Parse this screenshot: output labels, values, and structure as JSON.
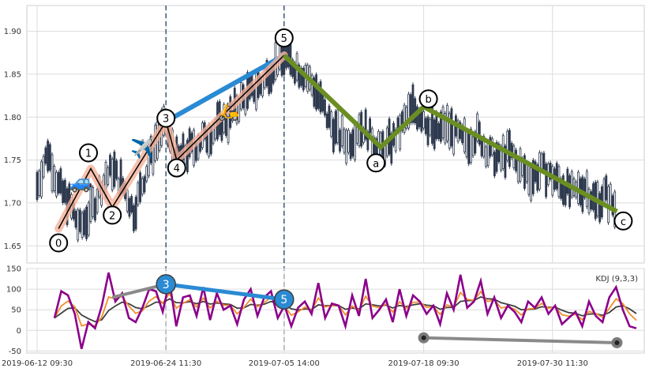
{
  "chart_data": [
    {
      "type": "candlestick",
      "panel": "price",
      "ylim": [
        1.63,
        1.93
      ],
      "y_ticks": [
        "1.65",
        "1.70",
        "1.75",
        "1.80",
        "1.85",
        "1.90"
      ],
      "x_range_days": "2019-06-12 09:30 to 2019-08-07",
      "x_tick_labels": [
        "2019-06-12 09:30",
        "2019-06-24 11:30",
        "2019-07-05 14:00",
        "2019-07-18 09:30",
        "2019-07-30 11:30"
      ],
      "x_tick_dates": [
        "2019-06-12",
        "2019-06-24",
        "2019-07-05",
        "2019-07-18",
        "2019-07-30"
      ],
      "vlines": [
        "2019-06-24",
        "2019-07-05"
      ],
      "candle_path": [
        [
          "2019-06-12",
          1.72
        ],
        [
          "2019-06-13",
          1.76
        ],
        [
          "2019-06-14",
          1.72
        ],
        [
          "2019-06-15",
          1.7
        ],
        [
          "2019-06-16",
          1.67
        ],
        [
          "2019-06-17",
          1.69
        ],
        [
          "2019-06-18",
          1.72
        ],
        [
          "2019-06-19",
          1.74
        ],
        [
          "2019-06-20",
          1.72
        ],
        [
          "2019-06-21",
          1.69
        ],
        [
          "2019-06-22",
          1.73
        ],
        [
          "2019-06-23",
          1.77
        ],
        [
          "2019-06-24",
          1.79
        ],
        [
          "2019-06-25",
          1.75
        ],
        [
          "2019-06-26",
          1.76
        ],
        [
          "2019-06-27",
          1.77
        ],
        [
          "2019-06-28",
          1.78
        ],
        [
          "2019-06-29",
          1.79
        ],
        [
          "2019-06-30",
          1.8
        ],
        [
          "2019-07-01",
          1.82
        ],
        [
          "2019-07-02",
          1.83
        ],
        [
          "2019-07-03",
          1.84
        ],
        [
          "2019-07-04",
          1.86
        ],
        [
          "2019-07-05",
          1.87
        ],
        [
          "2019-07-06",
          1.86
        ],
        [
          "2019-07-07",
          1.85
        ],
        [
          "2019-07-08",
          1.83
        ],
        [
          "2019-07-09",
          1.8
        ],
        [
          "2019-07-10",
          1.78
        ],
        [
          "2019-07-11",
          1.77
        ],
        [
          "2019-07-12",
          1.79
        ],
        [
          "2019-07-13",
          1.78
        ],
        [
          "2019-07-14",
          1.76
        ],
        [
          "2019-07-15",
          1.77
        ],
        [
          "2019-07-16",
          1.79
        ],
        [
          "2019-07-17",
          1.81
        ],
        [
          "2019-07-18",
          1.8
        ],
        [
          "2019-07-19",
          1.78
        ],
        [
          "2019-07-20",
          1.79
        ],
        [
          "2019-07-21",
          1.78
        ],
        [
          "2019-07-22",
          1.77
        ],
        [
          "2019-07-23",
          1.78
        ],
        [
          "2019-07-24",
          1.76
        ],
        [
          "2019-07-25",
          1.75
        ],
        [
          "2019-07-26",
          1.76
        ],
        [
          "2019-07-27",
          1.74
        ],
        [
          "2019-07-28",
          1.73
        ],
        [
          "2019-07-29",
          1.74
        ],
        [
          "2019-07-30",
          1.73
        ],
        [
          "2019-07-31",
          1.72
        ],
        [
          "2019-08-01",
          1.71
        ],
        [
          "2019-08-02",
          1.72
        ],
        [
          "2019-08-03",
          1.7
        ],
        [
          "2019-08-04",
          1.71
        ],
        [
          "2019-08-05",
          1.69
        ]
      ],
      "wave_main": {
        "labels": [
          "0",
          "1",
          "2",
          "3",
          "4",
          "5"
        ],
        "points": [
          [
            "2019-06-14",
            1.67
          ],
          [
            "2019-06-17",
            1.74
          ],
          [
            "2019-06-19",
            1.695
          ],
          [
            "2019-06-24",
            1.795
          ],
          [
            "2019-06-25",
            1.75
          ],
          [
            "2019-07-05",
            1.872
          ]
        ]
      },
      "wave_correction": {
        "labels": [
          "a",
          "b",
          "c"
        ],
        "points": [
          [
            "2019-07-05",
            1.872
          ],
          [
            "2019-07-14",
            1.765
          ],
          [
            "2019-07-18",
            1.812
          ],
          [
            "2019-08-05",
            1.69
          ]
        ]
      },
      "trend_line_3_5": [
        [
          "2019-06-24",
          1.795
        ],
        [
          "2019-07-05",
          1.872
        ]
      ],
      "colors": {
        "candle": "#2e3a4f",
        "wave_main": "#000000",
        "wave_glow": "#f4b29a",
        "correction": "#6b8e23",
        "trend": "#2a8ad4"
      },
      "emoji": {
        "car": "🚙",
        "plane": "✈️",
        "scooter": "🛵"
      }
    },
    {
      "type": "line",
      "panel": "kdj",
      "legend": "KDJ (9,3,3)",
      "ylim": [
        -55,
        150
      ],
      "y_ticks": [
        "-50",
        "0",
        "50",
        "100",
        "150"
      ],
      "series_colors": {
        "K": "#f28e2b",
        "D": "#3f3f3f",
        "J": "#8b008b"
      },
      "J_values": [
        30,
        95,
        85,
        40,
        -45,
        20,
        5,
        60,
        140,
        70,
        90,
        30,
        20,
        55,
        100,
        95,
        45,
        120,
        10,
        80,
        85,
        35,
        105,
        25,
        90,
        50,
        60,
        15,
        75,
        100,
        35,
        80,
        95,
        30,
        60,
        10,
        55,
        70,
        40,
        115,
        30,
        65,
        60,
        10,
        85,
        35,
        125,
        30,
        50,
        75,
        20,
        100,
        35,
        85,
        70,
        40,
        60,
        15,
        90,
        50,
        135,
        55,
        70,
        120,
        40,
        80,
        30,
        60,
        45,
        20,
        70,
        55,
        80,
        40,
        60,
        15,
        30,
        45,
        10,
        70,
        35,
        20,
        80,
        105,
        50,
        10,
        5
      ],
      "kdj_marks": {
        "labels": [
          "3",
          "5"
        ],
        "points": [
          [
            "2019-06-24",
            112
          ],
          [
            "2019-07-05",
            75
          ]
        ],
        "extra_gray": [
          [
            "2019-06-19",
            80
          ],
          [
            "2019-06-24",
            112
          ]
        ],
        "bottom_gray": [
          [
            "2019-07-18",
            -18
          ],
          [
            "2019-08-05",
            -30
          ]
        ]
      }
    }
  ]
}
